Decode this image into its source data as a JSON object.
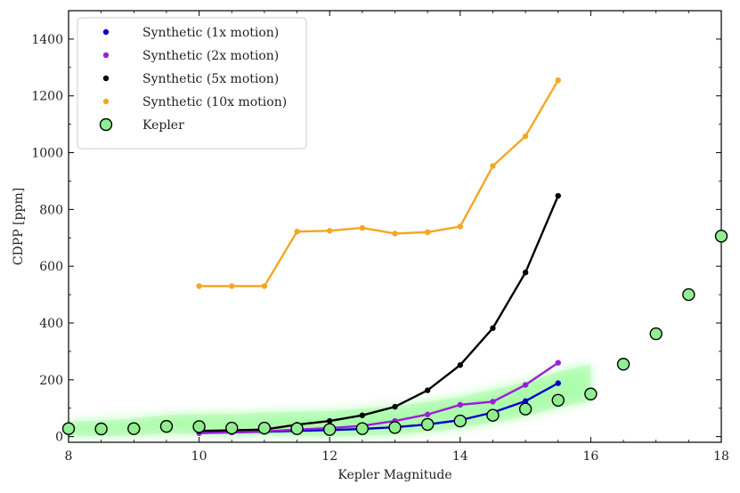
{
  "chart_data": {
    "type": "line",
    "xlabel": "Kepler Magnitude",
    "ylabel": "CDPP [ppm]",
    "xlim": [
      8,
      18
    ],
    "ylim": [
      -20,
      1500
    ],
    "x_ticks": [
      8,
      10,
      12,
      14,
      16,
      18
    ],
    "y_ticks": [
      0,
      200,
      400,
      600,
      800,
      1000,
      1200,
      1400
    ],
    "grid": false,
    "legend_position": "top-left",
    "series": [
      {
        "name": "Synthetic (1x motion)",
        "color": "#0000cc",
        "x": [
          10,
          10.5,
          11,
          11.5,
          12,
          12.5,
          13,
          13.5,
          14,
          14.5,
          15,
          15.5
        ],
        "y": [
          13,
          15,
          17,
          20,
          23,
          27,
          33,
          43,
          58,
          85,
          125,
          188
        ]
      },
      {
        "name": "Synthetic (2x motion)",
        "color": "#9b1fd6",
        "x": [
          10,
          10.5,
          11,
          11.5,
          12,
          12.5,
          13,
          13.5,
          14,
          14.5,
          15,
          15.5
        ],
        "y": [
          12,
          15,
          18,
          25,
          30,
          38,
          55,
          78,
          112,
          123,
          182,
          260
        ]
      },
      {
        "name": "Synthetic (5x motion)",
        "color": "#000000",
        "x": [
          10,
          10.5,
          11,
          11.5,
          12,
          12.5,
          13,
          13.5,
          14,
          14.5,
          15,
          15.5
        ],
        "y": [
          20,
          22,
          25,
          42,
          55,
          75,
          105,
          163,
          252,
          382,
          578,
          848
        ]
      },
      {
        "name": "Synthetic (10x motion)",
        "color": "#f5a623",
        "x": [
          10,
          10.5,
          11,
          11.5,
          12,
          12.5,
          13,
          13.5,
          14,
          14.5,
          15,
          15.5
        ],
        "y": [
          530,
          530,
          530,
          722,
          725,
          735,
          715,
          720,
          740,
          953,
          1058,
          1255
        ]
      },
      {
        "name": "Kepler",
        "color": "#90ee90",
        "x": [
          8,
          8.5,
          9,
          9.5,
          10,
          10.5,
          11,
          11.5,
          12,
          12.5,
          13,
          13.5,
          14,
          14.5,
          15,
          15.5,
          16,
          16.5,
          17,
          17.5,
          18
        ],
        "y": [
          28,
          27,
          28,
          36,
          35,
          30,
          30,
          28,
          25,
          28,
          32,
          43,
          55,
          75,
          97,
          128,
          150,
          255,
          362,
          500,
          706
        ]
      }
    ]
  }
}
